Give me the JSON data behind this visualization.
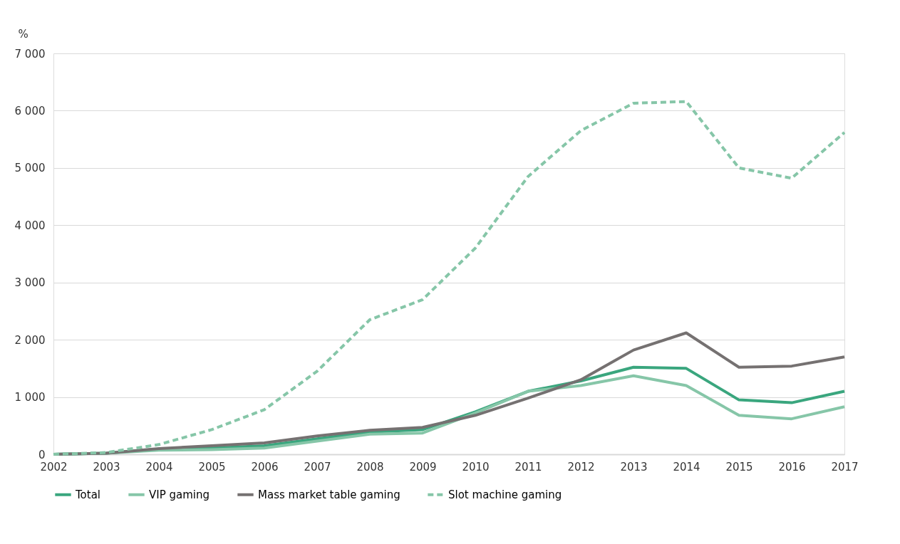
{
  "chart_data": {
    "type": "line",
    "ylabel": "%",
    "categories": [
      "2002",
      "2003",
      "2004",
      "2005",
      "2006",
      "2007",
      "2008",
      "2009",
      "2010",
      "2011",
      "2012",
      "2013",
      "2014",
      "2015",
      "2016",
      "2017"
    ],
    "series": [
      {
        "name": "Total",
        "color": "#3aa67e",
        "line_style": "solid",
        "values": [
          0,
          20,
          90,
          110,
          150,
          270,
          390,
          430,
          740,
          1100,
          1280,
          1520,
          1500,
          950,
          900,
          1100
        ]
      },
      {
        "name": "VIP gaming",
        "color": "#86c6a8",
        "line_style": "solid",
        "values": [
          0,
          20,
          70,
          80,
          110,
          230,
          350,
          370,
          720,
          1100,
          1200,
          1370,
          1200,
          680,
          620,
          830
        ]
      },
      {
        "name": "Mass market table gaming",
        "color": "#757171",
        "line_style": "solid",
        "values": [
          0,
          20,
          100,
          150,
          200,
          320,
          420,
          470,
          680,
          980,
          1300,
          1820,
          2120,
          1520,
          1540,
          1700
        ]
      },
      {
        "name": "Slot machine gaming",
        "color": "#86c6a8",
        "line_style": "dashed",
        "values": [
          0,
          30,
          170,
          430,
          780,
          1450,
          2350,
          2700,
          3600,
          4850,
          5650,
          6130,
          6160,
          5000,
          4820,
          5620
        ]
      }
    ],
    "ylim": [
      0,
      7000
    ],
    "yticks": [
      0,
      {
        "value": 1000,
        "label": "1 000"
      },
      {
        "value": 2000,
        "label": "2 000"
      },
      {
        "value": 3000,
        "label": "3 000"
      },
      {
        "value": 4000,
        "label": "4 000"
      },
      {
        "value": 5000,
        "label": "5 000"
      },
      {
        "value": 6000,
        "label": "6 000"
      },
      {
        "value": 7000,
        "label": "7 000"
      }
    ],
    "grid": "y",
    "legend": "bottom",
    "marker": "none"
  }
}
